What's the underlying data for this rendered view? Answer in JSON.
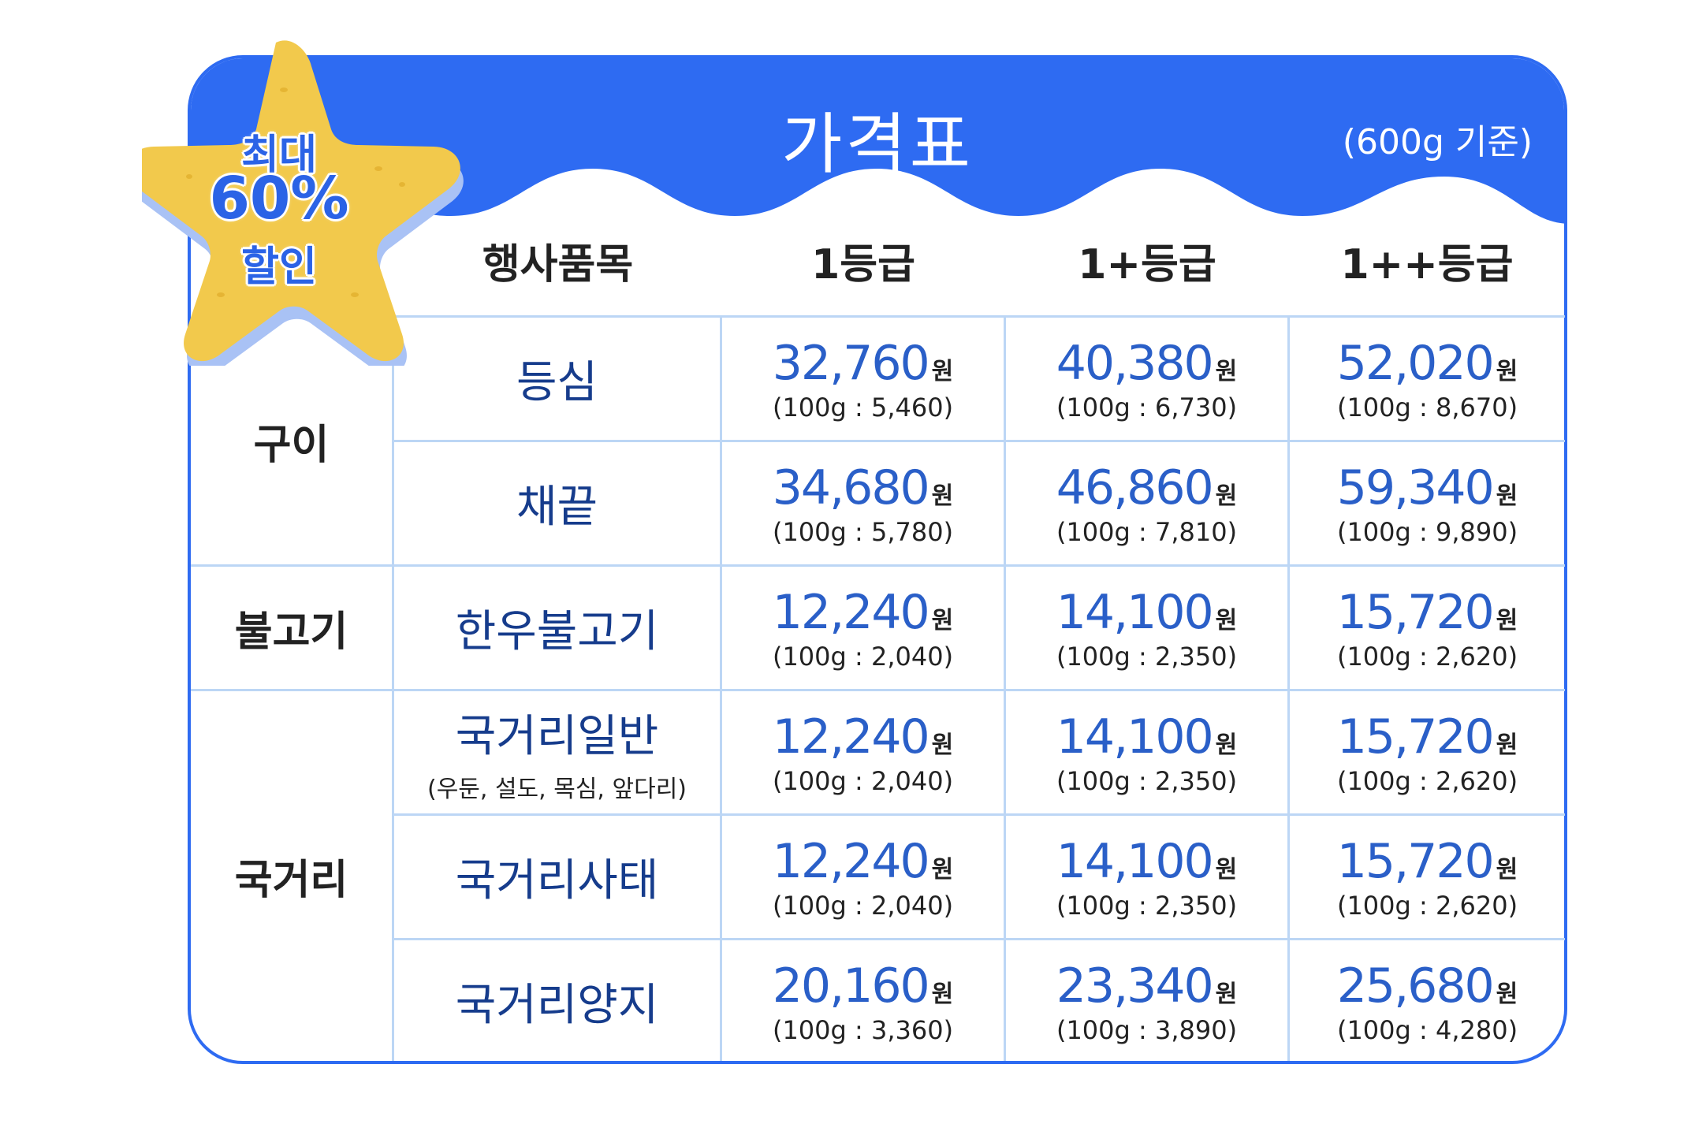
{
  "title": "가격표",
  "basis": "(600g 기준)",
  "badge": {
    "line1": "최대",
    "line2": "60%",
    "line3": "할인"
  },
  "headers": [
    "행사품목",
    "1등급",
    "1+등급",
    "1++등급"
  ],
  "categories": [
    "구이",
    "불고기",
    "국거리"
  ],
  "rows": [
    {
      "item": "등심",
      "sub": "",
      "prices": [
        {
          "amount": "32,760",
          "won": "원",
          "per": "(100g : 5,460)"
        },
        {
          "amount": "40,380",
          "won": "원",
          "per": "(100g : 6,730)"
        },
        {
          "amount": "52,020",
          "won": "원",
          "per": "(100g : 8,670)"
        }
      ]
    },
    {
      "item": "채끝",
      "sub": "",
      "prices": [
        {
          "amount": "34,680",
          "won": "원",
          "per": "(100g : 5,780)"
        },
        {
          "amount": "46,860",
          "won": "원",
          "per": "(100g : 7,810)"
        },
        {
          "amount": "59,340",
          "won": "원",
          "per": "(100g : 9,890)"
        }
      ]
    },
    {
      "item": "한우불고기",
      "sub": "",
      "prices": [
        {
          "amount": "12,240",
          "won": "원",
          "per": "(100g : 2,040)"
        },
        {
          "amount": "14,100",
          "won": "원",
          "per": "(100g : 2,350)"
        },
        {
          "amount": "15,720",
          "won": "원",
          "per": "(100g : 2,620)"
        }
      ]
    },
    {
      "item": "국거리일반",
      "sub": "(우둔, 설도, 목심, 앞다리)",
      "prices": [
        {
          "amount": "12,240",
          "won": "원",
          "per": "(100g : 2,040)"
        },
        {
          "amount": "14,100",
          "won": "원",
          "per": "(100g : 2,350)"
        },
        {
          "amount": "15,720",
          "won": "원",
          "per": "(100g : 2,620)"
        }
      ]
    },
    {
      "item": "국거리사태",
      "sub": "",
      "prices": [
        {
          "amount": "12,240",
          "won": "원",
          "per": "(100g : 2,040)"
        },
        {
          "amount": "14,100",
          "won": "원",
          "per": "(100g : 2,350)"
        },
        {
          "amount": "15,720",
          "won": "원",
          "per": "(100g : 2,620)"
        }
      ]
    },
    {
      "item": "국거리양지",
      "sub": "",
      "prices": [
        {
          "amount": "20,160",
          "won": "원",
          "per": "(100g : 3,360)"
        },
        {
          "amount": "23,340",
          "won": "원",
          "per": "(100g : 3,890)"
        },
        {
          "amount": "25,680",
          "won": "원",
          "per": "(100g : 4,280)"
        }
      ]
    }
  ],
  "colors": {
    "accent": "#2e6bf2",
    "star": "#f2c94c",
    "price": "#2a5fc8",
    "grid": "#bcd6f5"
  }
}
